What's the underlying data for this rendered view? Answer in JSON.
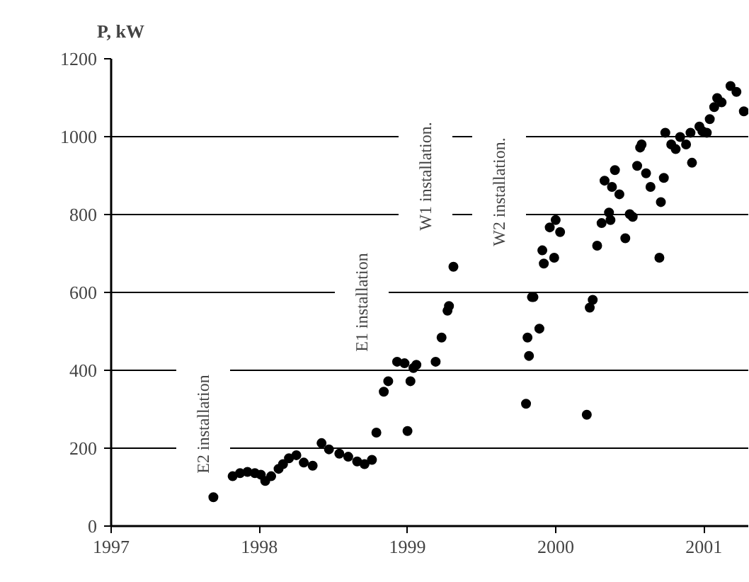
{
  "chart_data": {
    "type": "scatter",
    "ylabel": "P, kW",
    "x": [
      1997.69,
      1997.82,
      1997.87,
      1997.92,
      1997.97,
      1998.01,
      1998.04,
      1998.08,
      1998.13,
      1998.16,
      1998.2,
      1998.25,
      1998.3,
      1998.36,
      1998.42,
      1998.47,
      1998.54,
      1998.6,
      1998.66,
      1998.71,
      1998.76,
      1998.79,
      1998.84,
      1998.87,
      1998.93,
      1998.98,
      1999.04,
      1999.02,
      1999.0,
      1999.31,
      1999.28,
      1999.27,
      1999.23,
      1999.19,
      1999.06,
      1999.8,
      1999.81,
      1999.82,
      1999.84,
      1999.89,
      1999.85,
      1999.92,
      1999.91,
      1999.99,
      1999.96,
      2000.0,
      2000.03,
      2000.21,
      2000.23,
      2000.25,
      2000.28,
      2000.31,
      2000.36,
      2000.37,
      2000.33,
      2000.38,
      2000.43,
      2000.4,
      2000.47,
      2000.5,
      2000.52,
      2000.55,
      2000.57,
      2000.58,
      2000.61,
      2000.64,
      2000.7,
      2000.71,
      2000.73,
      2000.74,
      2000.78,
      2000.81,
      2000.84,
      2000.88,
      2000.92,
      2000.91,
      2000.97,
      2001.02,
      2000.99,
      2001.04,
      2001.07,
      2001.09,
      2001.12,
      2001.18,
      2001.22,
      2001.27
    ],
    "values": [
      74,
      128,
      136,
      139,
      136,
      132,
      116,
      128,
      147,
      159,
      174,
      182,
      163,
      155,
      213,
      197,
      186,
      178,
      166,
      159,
      170,
      240,
      345,
      372,
      422,
      418,
      406,
      372,
      244,
      666,
      565,
      553,
      484,
      422,
      414,
      314,
      484,
      437,
      588,
      507,
      588,
      674,
      708,
      689,
      767,
      786,
      755,
      286,
      561,
      581,
      720,
      778,
      805,
      786,
      887,
      871,
      852,
      914,
      739,
      801,
      794,
      925,
      972,
      980,
      906,
      871,
      689,
      832,
      894,
      1010,
      980,
      968,
      999,
      980,
      933,
      1010,
      1026,
      1010,
      1014,
      1045,
      1076,
      1099,
      1088,
      1130,
      1115,
      1065
    ],
    "color": "#000000",
    "marker": "circle",
    "xlim": [
      1997,
      2001.3
    ],
    "xticks": [
      1997,
      1998,
      1999,
      2000,
      2001
    ],
    "ylim": [
      0,
      1200
    ],
    "yticks": [
      0,
      200,
      400,
      600,
      800,
      1000,
      1200
    ],
    "grid": "y",
    "annotations": [
      "E2 installation",
      "E1 installation",
      "W1 installation.",
      "W2 installation."
    ]
  }
}
